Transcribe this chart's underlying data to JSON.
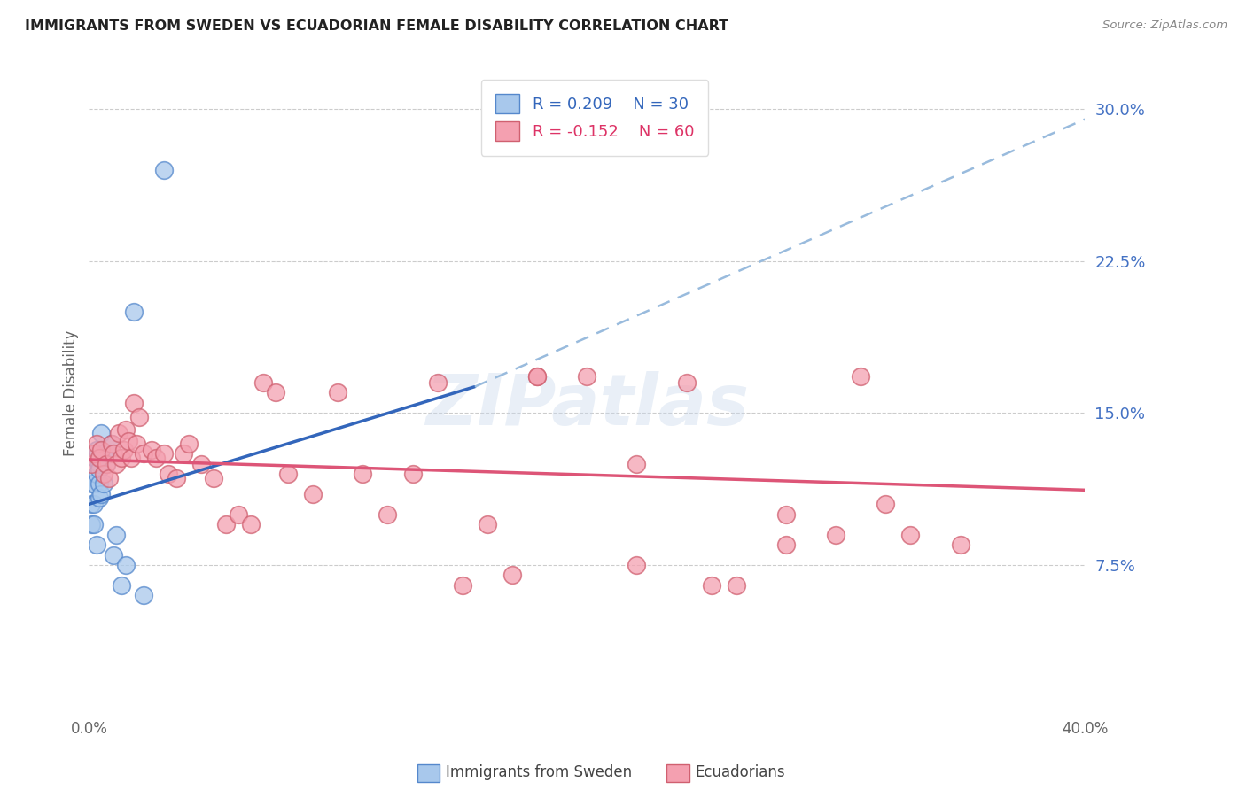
{
  "title": "IMMIGRANTS FROM SWEDEN VS ECUADORIAN FEMALE DISABILITY CORRELATION CHART",
  "source": "Source: ZipAtlas.com",
  "ylabel": "Female Disability",
  "yticks": [
    0.0,
    0.075,
    0.15,
    0.225,
    0.3
  ],
  "ytick_labels": [
    "",
    "7.5%",
    "15.0%",
    "22.5%",
    "30.0%"
  ],
  "xlim": [
    0.0,
    0.4
  ],
  "ylim": [
    0.0,
    0.32
  ],
  "legend_r1": "R = 0.209",
  "legend_n1": "N = 30",
  "legend_r2": "R = -0.152",
  "legend_n2": "N = 60",
  "color_blue_fill": "#A8C8EC",
  "color_blue_edge": "#5588CC",
  "color_pink_fill": "#F4A0B0",
  "color_pink_edge": "#D06070",
  "color_trend_blue_solid": "#3366BB",
  "color_trend_blue_dash": "#99BBDD",
  "color_trend_pink": "#DD5577",
  "watermark_text": "ZIPatlas",
  "blue_trend_x0": 0.0,
  "blue_trend_y0": 0.105,
  "blue_trend_x1": 0.155,
  "blue_trend_y1": 0.163,
  "blue_trend_dash_x0": 0.155,
  "blue_trend_dash_y0": 0.163,
  "blue_trend_dash_x1": 0.4,
  "blue_trend_dash_y1": 0.295,
  "pink_trend_x0": 0.0,
  "pink_trend_y0": 0.127,
  "pink_trend_x1": 0.4,
  "pink_trend_y1": 0.112,
  "sweden_x": [
    0.001,
    0.001,
    0.001,
    0.002,
    0.002,
    0.002,
    0.002,
    0.003,
    0.003,
    0.003,
    0.003,
    0.004,
    0.004,
    0.004,
    0.004,
    0.005,
    0.005,
    0.005,
    0.006,
    0.006,
    0.007,
    0.008,
    0.009,
    0.01,
    0.011,
    0.013,
    0.015,
    0.018,
    0.022,
    0.03
  ],
  "sweden_y": [
    0.095,
    0.115,
    0.105,
    0.128,
    0.115,
    0.105,
    0.095,
    0.12,
    0.13,
    0.132,
    0.085,
    0.125,
    0.115,
    0.122,
    0.108,
    0.128,
    0.14,
    0.11,
    0.13,
    0.115,
    0.125,
    0.13,
    0.135,
    0.08,
    0.09,
    0.065,
    0.075,
    0.2,
    0.06,
    0.27
  ],
  "ecuador_x": [
    0.001,
    0.002,
    0.003,
    0.004,
    0.005,
    0.006,
    0.007,
    0.008,
    0.009,
    0.01,
    0.011,
    0.012,
    0.013,
    0.014,
    0.015,
    0.016,
    0.017,
    0.018,
    0.019,
    0.02,
    0.022,
    0.025,
    0.027,
    0.03,
    0.032,
    0.035,
    0.038,
    0.04,
    0.045,
    0.05,
    0.055,
    0.06,
    0.065,
    0.07,
    0.075,
    0.08,
    0.09,
    0.1,
    0.11,
    0.12,
    0.13,
    0.14,
    0.15,
    0.16,
    0.17,
    0.18,
    0.2,
    0.22,
    0.24,
    0.26,
    0.28,
    0.3,
    0.32,
    0.18,
    0.22,
    0.25,
    0.28,
    0.31,
    0.33,
    0.35
  ],
  "ecuador_y": [
    0.125,
    0.13,
    0.135,
    0.128,
    0.132,
    0.12,
    0.125,
    0.118,
    0.135,
    0.13,
    0.125,
    0.14,
    0.128,
    0.132,
    0.142,
    0.136,
    0.128,
    0.155,
    0.135,
    0.148,
    0.13,
    0.132,
    0.128,
    0.13,
    0.12,
    0.118,
    0.13,
    0.135,
    0.125,
    0.118,
    0.095,
    0.1,
    0.095,
    0.165,
    0.16,
    0.12,
    0.11,
    0.16,
    0.12,
    0.1,
    0.12,
    0.165,
    0.065,
    0.095,
    0.07,
    0.168,
    0.168,
    0.125,
    0.165,
    0.065,
    0.1,
    0.09,
    0.105,
    0.168,
    0.075,
    0.065,
    0.085,
    0.168,
    0.09,
    0.085
  ]
}
